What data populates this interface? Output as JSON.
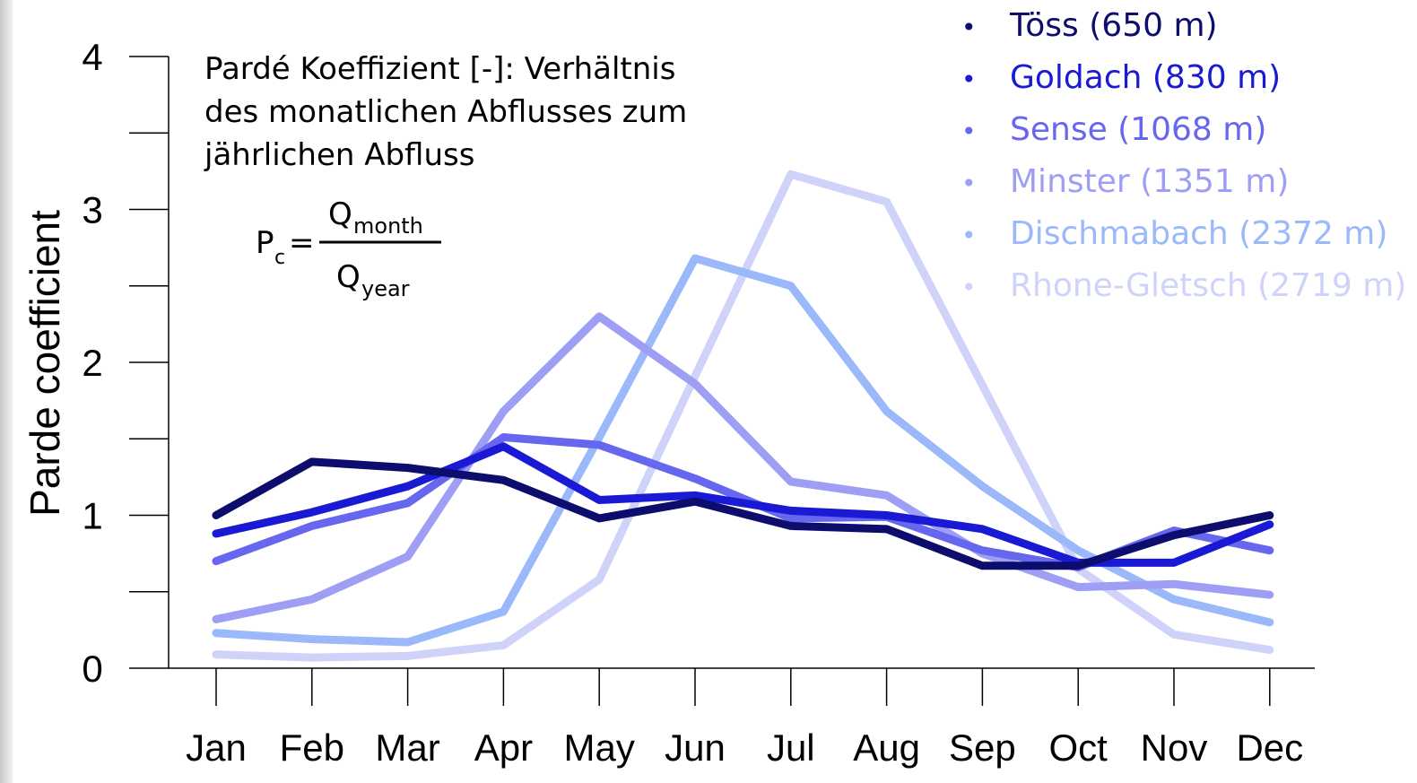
{
  "chart_data": {
    "type": "line",
    "title": "",
    "xlabel": "",
    "ylabel": "Parde coefficient",
    "ylim": [
      0,
      4
    ],
    "yticks": [
      0,
      1,
      2,
      3,
      4
    ],
    "grid": false,
    "legend_placement": "top-right",
    "categories": [
      "Jan",
      "Feb",
      "Mar",
      "Apr",
      "May",
      "Jun",
      "Jul",
      "Aug",
      "Sep",
      "Oct",
      "Nov",
      "Dec"
    ],
    "series": [
      {
        "name": "Töss (650 m)",
        "color": "#0d0d6e",
        "values": [
          1.0,
          1.35,
          1.31,
          1.23,
          0.98,
          1.09,
          0.93,
          0.91,
          0.67,
          0.67,
          0.87,
          1.0
        ]
      },
      {
        "name": "Goldach (830 m)",
        "color": "#1a1ad4",
        "values": [
          0.88,
          1.02,
          1.19,
          1.45,
          1.1,
          1.13,
          1.03,
          1.0,
          0.91,
          0.69,
          0.69,
          0.94
        ]
      },
      {
        "name": "Sense (1068 m)",
        "color": "#6666ee",
        "values": [
          0.7,
          0.93,
          1.08,
          1.51,
          1.46,
          1.24,
          0.98,
          0.99,
          0.77,
          0.66,
          0.9,
          0.77
        ]
      },
      {
        "name": "Minster (1351 m)",
        "color": "#9e9ef5",
        "values": [
          0.32,
          0.45,
          0.73,
          1.68,
          2.3,
          1.86,
          1.22,
          1.13,
          0.75,
          0.53,
          0.55,
          0.48
        ]
      },
      {
        "name": "Dischmabach (2372 m)",
        "color": "#9ab8fa",
        "values": [
          0.23,
          0.19,
          0.17,
          0.37,
          1.51,
          2.68,
          2.5,
          1.68,
          1.19,
          0.77,
          0.45,
          0.3
        ]
      },
      {
        "name": "Rhone-Gletsch (2719 m)",
        "color": "#cfd3fa",
        "values": [
          0.09,
          0.07,
          0.08,
          0.15,
          0.58,
          1.91,
          3.23,
          3.05,
          1.85,
          0.65,
          0.22,
          0.12
        ]
      }
    ],
    "annotation": {
      "lines": [
        "Pardé Koeffizient [-]: Verhältnis",
        "des monatlichen Abflusses zum",
        "jährlichen Abfluss"
      ],
      "formula": {
        "lhs_main": "P",
        "lhs_sub": "c",
        "equals": "=",
        "num_main": "Q",
        "num_sub": "month",
        "den_main": "Q",
        "den_sub": "year"
      }
    }
  }
}
